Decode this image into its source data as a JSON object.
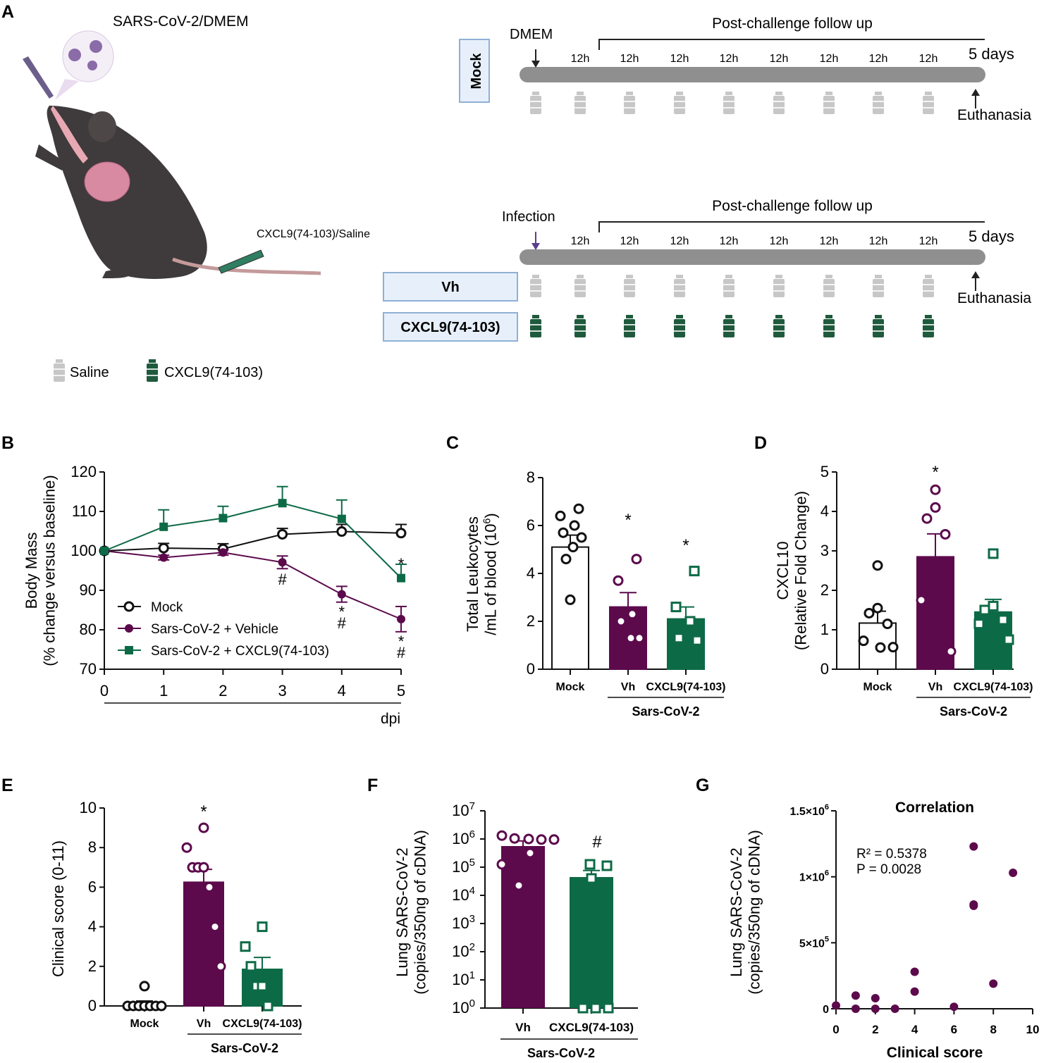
{
  "panel_letters": {
    "A": "A",
    "B": "B",
    "C": "C",
    "D": "D",
    "E": "E",
    "F": "F",
    "G": "G"
  },
  "colors": {
    "vehicle": "#5c0a4c",
    "cxcl9": "#0d6a46",
    "mock": "#111111",
    "saline": "#c7c7c7",
    "timeline": "#8f8f8f",
    "box_fill": "#e7f0fa",
    "box_stroke": "#8fb0d6",
    "arrow_infection": "#5a3e8c"
  },
  "panel_a": {
    "challenge_label": "SARS-CoV-2/DMEM",
    "treatment_label": "CXCL9(74-103)/Saline",
    "mock_timeline": {
      "group": "Mock",
      "start_label": "DMEM",
      "followup": "Post-challenge follow up",
      "interval_labels": [
        "12h",
        "12h",
        "12h",
        "12h",
        "12h",
        "12h",
        "12h",
        "12h"
      ],
      "end_label": "5 days",
      "endpoint": "Euthanasia"
    },
    "infection_timeline": {
      "start_label": "Infection",
      "followup": "Post-challenge follow up",
      "interval_labels": [
        "12h",
        "12h",
        "12h",
        "12h",
        "12h",
        "12h",
        "12h",
        "12h"
      ],
      "end_label": "5 days",
      "endpoint": "Euthanasia",
      "groups": [
        "Vh",
        "CXCL9(74-103)"
      ]
    },
    "legend": {
      "saline": "Saline",
      "cxcl9": "CXCL9(74-103)"
    }
  },
  "chart_data": [
    {
      "panel": "B",
      "type": "line",
      "ylabel": "Body Mass",
      "ylabel2": "(% change versus baseline)",
      "xlabel": "dpi",
      "ylim": [
        70,
        120
      ],
      "yticks": [
        "70",
        "80",
        "90",
        "100",
        "110",
        "120"
      ],
      "x": [
        0,
        1,
        2,
        3,
        4,
        5
      ],
      "xticks": [
        "0",
        "1",
        "2",
        "3",
        "4",
        "5"
      ],
      "series": [
        {
          "name": "Mock",
          "marker": "open-circle",
          "values": [
            100,
            100.7,
            100.5,
            104.2,
            104.9,
            104.5
          ],
          "err": [
            0,
            1.2,
            1.3,
            1.5,
            1.8,
            2.2
          ]
        },
        {
          "name": "Sars-CoV-2 + Vehicle",
          "marker": "filled-circle",
          "values": [
            100,
            98.3,
            99.6,
            97.1,
            89,
            82.7
          ],
          "err": [
            0,
            0.6,
            0.7,
            1.6,
            2.0,
            3.2
          ]
        },
        {
          "name": "Sars-CoV-2 + CXCL9(74-103)",
          "marker": "filled-square",
          "values": [
            100,
            106.1,
            108.3,
            112.1,
            108.1,
            93.1
          ],
          "err": [
            0,
            4.3,
            3.0,
            4.2,
            4.8,
            3.5
          ]
        }
      ],
      "annotations": [
        {
          "x": 3,
          "text": "#"
        },
        {
          "x": 4,
          "text": "*"
        },
        {
          "x": 4,
          "text": "#"
        },
        {
          "x": 5,
          "text": "*"
        },
        {
          "x": 5,
          "text": "*"
        },
        {
          "x": 5,
          "text": "#"
        }
      ]
    },
    {
      "panel": "C",
      "type": "bar",
      "ylabel": "Total Leukocytes",
      "ylabel2": "/mL of blood (10",
      "ylabel2_sup": "6",
      "ylabel2_end": ")",
      "ylim": [
        0,
        8
      ],
      "yticks": [
        "0",
        "2",
        "4",
        "6",
        "8"
      ],
      "categories": [
        "Mock",
        "Vh",
        "CXCL9(74-103)"
      ],
      "values": [
        5.1,
        2.6,
        2.1
      ],
      "err": [
        0.5,
        0.6,
        0.5
      ],
      "points": [
        [
          6.7,
          6.4,
          6.0,
          5.7,
          5.5,
          5.1,
          4.6,
          2.9
        ],
        [
          4.6,
          3.7,
          2.3,
          2.0,
          1.3,
          1.3
        ],
        [
          4.1,
          2.6,
          2.0,
          1.3,
          1.2
        ]
      ],
      "sig": [
        "",
        "*",
        "*"
      ],
      "group_label": "Sars-CoV-2"
    },
    {
      "panel": "D",
      "type": "bar",
      "ylabel": "CXCL10",
      "ylabel2": "(Relative Fold Change)",
      "ylim": [
        0,
        5
      ],
      "yticks": [
        "0",
        "1",
        "2",
        "3",
        "4",
        "5"
      ],
      "categories": [
        "Mock",
        "Vh",
        "CXCL9(74-103)"
      ],
      "values": [
        1.17,
        2.85,
        1.45
      ],
      "err": [
        0.3,
        0.58,
        0.32
      ],
      "points": [
        [
          2.63,
          1.55,
          1.42,
          1.15,
          0.72,
          0.56,
          0.55
        ],
        [
          4.55,
          4.1,
          3.82,
          3.42,
          1.75,
          0.45
        ],
        [
          2.93,
          1.6,
          1.5,
          1.25,
          1.15,
          0.75
        ]
      ],
      "sig": [
        "",
        "*",
        ""
      ],
      "group_label": "Sars-CoV-2"
    },
    {
      "panel": "E",
      "type": "bar",
      "ylabel": "Clinical score (0-11)",
      "ylim": [
        0,
        10
      ],
      "yticks": [
        "0",
        "2",
        "4",
        "6",
        "8",
        "10"
      ],
      "categories": [
        "Mock",
        "Vh",
        "CXCL9(74-103)"
      ],
      "values": [
        0.15,
        6.25,
        1.85
      ],
      "err": [
        0.1,
        0.65,
        0.6
      ],
      "points": [
        [
          1,
          0,
          0,
          0,
          0,
          0,
          0,
          0
        ],
        [
          9,
          8,
          7,
          7,
          7,
          6,
          4,
          2
        ],
        [
          4,
          3,
          2,
          1,
          1,
          0
        ]
      ],
      "sig": [
        "",
        "*",
        ""
      ],
      "group_label": "Sars-CoV-2"
    },
    {
      "panel": "F",
      "type": "bar",
      "scale": "log",
      "ylabel": "Lung SARS-CoV-2",
      "ylabel2": "(copies/350ng of cDNA)",
      "ylim_log10": [
        0,
        7
      ],
      "ytick_base": "10",
      "ytick_exps": [
        "0",
        "1",
        "2",
        "3",
        "4",
        "5",
        "6",
        "7"
      ],
      "categories": [
        "Vh",
        "CXCL9(74-103)"
      ],
      "log10_values": [
        5.75,
        4.65
      ],
      "log10_err_top": [
        5.93,
        4.88
      ],
      "log10_points": [
        [
          6.12,
          6.02,
          6.0,
          5.98,
          5.98,
          5.5,
          5.1,
          4.35
        ],
        [
          5.1,
          5.05,
          4.6,
          0,
          0,
          0
        ]
      ],
      "sig": [
        "",
        "#"
      ],
      "group_label": "Sars-CoV-2"
    },
    {
      "panel": "G",
      "type": "scatter",
      "title": "Correlation",
      "xlabel": "Clinical score",
      "ylabel": "Lung SARS-CoV-2",
      "ylabel2": "(copies/350ng of cDNA)",
      "xlim": [
        0,
        10
      ],
      "xticks": [
        "0",
        "2",
        "4",
        "6",
        "8",
        "10"
      ],
      "ylim": [
        0,
        1500000
      ],
      "yticks": [
        {
          "mant": "0",
          "exp": ""
        },
        {
          "mant": "5×10",
          "exp": "5"
        },
        {
          "mant": "1×10",
          "exp": "6"
        },
        {
          "mant": "1.5×10",
          "exp": "6"
        }
      ],
      "stats": [
        "R² = 0.5378",
        "P = 0.0028"
      ],
      "points": [
        [
          0,
          25000
        ],
        [
          1,
          100000
        ],
        [
          1,
          0
        ],
        [
          2,
          80000
        ],
        [
          2,
          0
        ],
        [
          3,
          0
        ],
        [
          4,
          280000
        ],
        [
          4,
          130000
        ],
        [
          6,
          15000
        ],
        [
          7,
          1230000
        ],
        [
          7,
          780000
        ],
        [
          7,
          790000
        ],
        [
          8,
          190000
        ],
        [
          9,
          1030000
        ]
      ]
    }
  ]
}
